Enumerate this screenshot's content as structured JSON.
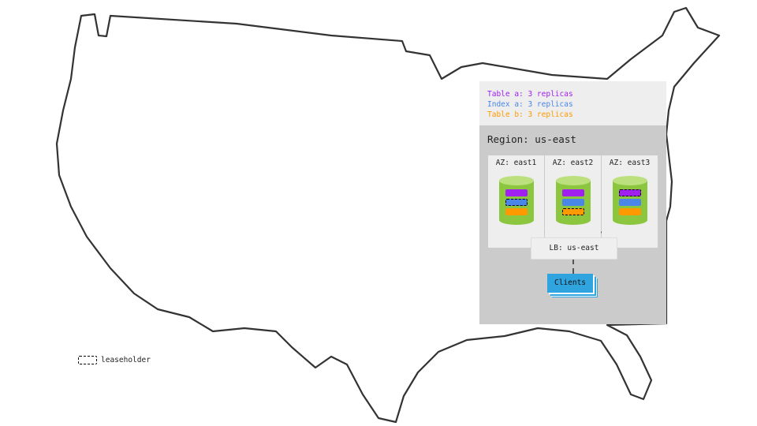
{
  "legend": {
    "items": [
      {
        "label": "Table a: 3 replicas",
        "color": "#a020f0"
      },
      {
        "label": "Index a: 3 replicas",
        "color": "#4a86e8"
      },
      {
        "label": "Table b: 3 replicas",
        "color": "#ff9900"
      }
    ],
    "leaseholder_label": "leaseholder"
  },
  "region": {
    "label": "Region: us-east"
  },
  "zones": [
    {
      "label": "AZ: east1",
      "leaseholder": "index-a"
    },
    {
      "label": "AZ: east2",
      "leaseholder": "table-b"
    },
    {
      "label": "AZ: east3",
      "leaseholder": "table-a"
    }
  ],
  "load_balancer": {
    "label": "LB: us-east"
  },
  "clients": {
    "label": "Clients"
  },
  "colors": {
    "cylinder": "#8cc63f",
    "cylinder_top": "#bde07f",
    "clients": "#2fa4df"
  }
}
